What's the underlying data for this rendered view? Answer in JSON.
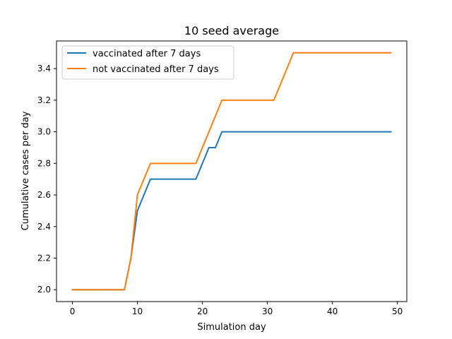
{
  "chart_data": {
    "type": "line",
    "title": "10 seed average",
    "xlabel": "Simulation day",
    "ylabel": "Cumulative cases per day",
    "xlim": [
      -2.45,
      51.45
    ],
    "ylim": [
      1.925,
      3.575
    ],
    "xticks": [
      0,
      10,
      20,
      30,
      40,
      50
    ],
    "xtick_labels": [
      "0",
      "10",
      "20",
      "30",
      "40",
      "50"
    ],
    "yticks": [
      2.0,
      2.2,
      2.4,
      2.6,
      2.8,
      3.0,
      3.2,
      3.4
    ],
    "ytick_labels": [
      "2.0",
      "2.2",
      "2.4",
      "2.6",
      "2.8",
      "3.0",
      "3.2",
      "3.4"
    ],
    "grid": false,
    "legend_position": "top-left",
    "series": [
      {
        "name": "vaccinated after 7 days",
        "color": "#1f77b4",
        "x": [
          0,
          1,
          2,
          3,
          4,
          5,
          6,
          7,
          8,
          9,
          10,
          11,
          12,
          13,
          14,
          15,
          16,
          17,
          18,
          19,
          20,
          21,
          22,
          23,
          24,
          25,
          26,
          27,
          28,
          29,
          30,
          31,
          32,
          33,
          34,
          35,
          36,
          37,
          38,
          39,
          40,
          41,
          42,
          43,
          44,
          45,
          46,
          47,
          48,
          49
        ],
        "y": [
          2.0,
          2.0,
          2.0,
          2.0,
          2.0,
          2.0,
          2.0,
          2.0,
          2.0,
          2.2,
          2.5,
          2.6,
          2.7,
          2.7,
          2.7,
          2.7,
          2.7,
          2.7,
          2.7,
          2.7,
          2.8,
          2.9,
          2.9,
          3.0,
          3.0,
          3.0,
          3.0,
          3.0,
          3.0,
          3.0,
          3.0,
          3.0,
          3.0,
          3.0,
          3.0,
          3.0,
          3.0,
          3.0,
          3.0,
          3.0,
          3.0,
          3.0,
          3.0,
          3.0,
          3.0,
          3.0,
          3.0,
          3.0,
          3.0,
          3.0
        ]
      },
      {
        "name": "not vaccinated after 7 days",
        "color": "#ff7f0e",
        "x": [
          0,
          1,
          2,
          3,
          4,
          5,
          6,
          7,
          8,
          9,
          10,
          11,
          12,
          13,
          14,
          15,
          16,
          17,
          18,
          19,
          20,
          21,
          22,
          23,
          24,
          25,
          26,
          27,
          28,
          29,
          30,
          31,
          32,
          33,
          34,
          35,
          36,
          37,
          38,
          39,
          40,
          41,
          42,
          43,
          44,
          45,
          46,
          47,
          48,
          49
        ],
        "y": [
          2.0,
          2.0,
          2.0,
          2.0,
          2.0,
          2.0,
          2.0,
          2.0,
          2.0,
          2.2,
          2.6,
          2.7,
          2.8,
          2.8,
          2.8,
          2.8,
          2.8,
          2.8,
          2.8,
          2.8,
          2.9,
          3.0,
          3.1,
          3.2,
          3.2,
          3.2,
          3.2,
          3.2,
          3.2,
          3.2,
          3.2,
          3.2,
          3.3,
          3.4,
          3.5,
          3.5,
          3.5,
          3.5,
          3.5,
          3.5,
          3.5,
          3.5,
          3.5,
          3.5,
          3.5,
          3.5,
          3.5,
          3.5,
          3.5,
          3.5
        ]
      }
    ]
  }
}
